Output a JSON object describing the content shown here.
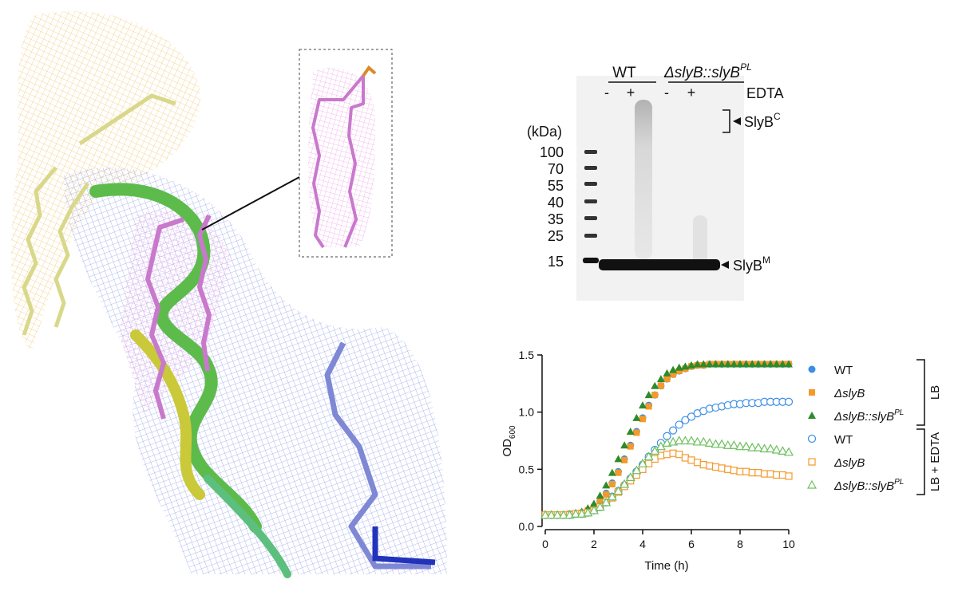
{
  "gel": {
    "lane_groups": [
      {
        "label": "WT"
      },
      {
        "label": "ΔslyB::slyB",
        "label_superscript": "PL"
      }
    ],
    "treatment": "EDTA",
    "lanes": [
      "-",
      "+",
      "-",
      "+"
    ],
    "unit_label": "(kDa)",
    "markers": [
      "100",
      "70",
      "55",
      "40",
      "35",
      "25",
      "15"
    ],
    "band_labels": [
      {
        "label": "SlyB",
        "label_superscript": "C"
      },
      {
        "label": "SlyB",
        "label_superscript": "M"
      }
    ]
  },
  "chart_data": {
    "type": "scatter",
    "xlabel": "Time (h)",
    "ylabel": "OD",
    "ylabel_subscript": "600",
    "x": [
      0,
      0.25,
      0.5,
      0.75,
      1,
      1.25,
      1.5,
      1.75,
      2,
      2.25,
      2.5,
      2.75,
      3,
      3.25,
      3.5,
      3.75,
      4,
      4.25,
      4.5,
      4.75,
      5,
      5.25,
      5.5,
      5.75,
      6,
      6.25,
      6.5,
      6.75,
      7,
      7.25,
      7.5,
      7.75,
      8,
      8.25,
      8.5,
      8.75,
      9,
      9.25,
      9.5,
      9.75,
      10
    ],
    "xlim": [
      0,
      10
    ],
    "xticks": [
      0,
      2,
      4,
      6,
      8,
      10
    ],
    "ylim": [
      0,
      1.5
    ],
    "yticks": [
      {
        "value": 0,
        "label": "0.0"
      },
      0.5,
      {
        "value": 1,
        "label": "1.0"
      },
      1.5
    ],
    "groups": [
      {
        "label": "LB",
        "series": [
          {
            "name": "WT",
            "color": "#3b8ee6",
            "marker": "circle",
            "filled": true,
            "values": [
              0.1,
              0.1,
              0.1,
              0.1,
              0.11,
              0.11,
              0.12,
              0.14,
              0.17,
              0.22,
              0.29,
              0.38,
              0.48,
              0.59,
              0.71,
              0.83,
              0.95,
              1.06,
              1.15,
              1.23,
              1.29,
              1.33,
              1.36,
              1.38,
              1.4,
              1.41,
              1.41,
              1.42,
              1.42,
              1.42,
              1.42,
              1.42,
              1.42,
              1.42,
              1.42,
              1.42,
              1.42,
              1.42,
              1.42,
              1.42,
              1.42
            ]
          },
          {
            "name": "ΔslyB",
            "color": "#f39a2b",
            "marker": "square",
            "filled": true,
            "values": [
              0.1,
              0.1,
              0.1,
              0.1,
              0.11,
              0.11,
              0.12,
              0.14,
              0.17,
              0.22,
              0.28,
              0.37,
              0.47,
              0.58,
              0.7,
              0.82,
              0.94,
              1.05,
              1.15,
              1.23,
              1.29,
              1.33,
              1.36,
              1.38,
              1.4,
              1.41,
              1.41,
              1.42,
              1.42,
              1.42,
              1.42,
              1.42,
              1.42,
              1.42,
              1.42,
              1.42,
              1.42,
              1.42,
              1.42,
              1.42,
              1.42
            ]
          },
          {
            "name": "ΔslyB::slyB",
            "name_superscript": "PL",
            "color": "#2f8a2a",
            "marker": "triangle",
            "filled": true,
            "values": [
              0.1,
              0.1,
              0.1,
              0.1,
              0.11,
              0.12,
              0.13,
              0.16,
              0.2,
              0.27,
              0.36,
              0.47,
              0.59,
              0.71,
              0.83,
              0.95,
              1.06,
              1.15,
              1.23,
              1.29,
              1.34,
              1.37,
              1.39,
              1.4,
              1.41,
              1.42,
              1.42,
              1.42,
              1.42,
              1.42,
              1.42,
              1.42,
              1.42,
              1.42,
              1.42,
              1.42,
              1.42,
              1.42,
              1.42,
              1.42,
              1.42
            ]
          }
        ]
      },
      {
        "label": "LB + EDTA",
        "series": [
          {
            "name": "WT",
            "color": "#3b8ee6",
            "marker": "circle",
            "filled": false,
            "values": [
              0.1,
              0.1,
              0.1,
              0.1,
              0.1,
              0.11,
              0.11,
              0.12,
              0.14,
              0.17,
              0.21,
              0.26,
              0.31,
              0.36,
              0.42,
              0.48,
              0.54,
              0.61,
              0.67,
              0.73,
              0.79,
              0.84,
              0.89,
              0.93,
              0.96,
              0.99,
              1.01,
              1.03,
              1.04,
              1.05,
              1.06,
              1.07,
              1.07,
              1.08,
              1.08,
              1.08,
              1.09,
              1.09,
              1.09,
              1.09,
              1.09
            ]
          },
          {
            "name": "ΔslyB",
            "color": "#f39a2b",
            "marker": "square",
            "filled": false,
            "values": [
              0.1,
              0.1,
              0.1,
              0.1,
              0.1,
              0.11,
              0.11,
              0.12,
              0.14,
              0.17,
              0.21,
              0.25,
              0.3,
              0.35,
              0.4,
              0.45,
              0.5,
              0.55,
              0.59,
              0.62,
              0.63,
              0.64,
              0.63,
              0.6,
              0.58,
              0.56,
              0.54,
              0.53,
              0.52,
              0.51,
              0.5,
              0.49,
              0.48,
              0.48,
              0.47,
              0.47,
              0.46,
              0.46,
              0.45,
              0.45,
              0.44
            ]
          },
          {
            "name": "ΔslyB::slyB",
            "name_superscript": "PL",
            "color": "#6fbf5f",
            "marker": "triangle",
            "filled": false,
            "values": [
              0.1,
              0.1,
              0.1,
              0.1,
              0.1,
              0.11,
              0.11,
              0.12,
              0.14,
              0.17,
              0.21,
              0.26,
              0.31,
              0.37,
              0.43,
              0.49,
              0.55,
              0.61,
              0.66,
              0.7,
              0.73,
              0.74,
              0.75,
              0.75,
              0.75,
              0.74,
              0.74,
              0.73,
              0.72,
              0.72,
              0.71,
              0.71,
              0.7,
              0.7,
              0.69,
              0.69,
              0.68,
              0.68,
              0.67,
              0.66,
              0.65
            ]
          }
        ]
      }
    ]
  }
}
